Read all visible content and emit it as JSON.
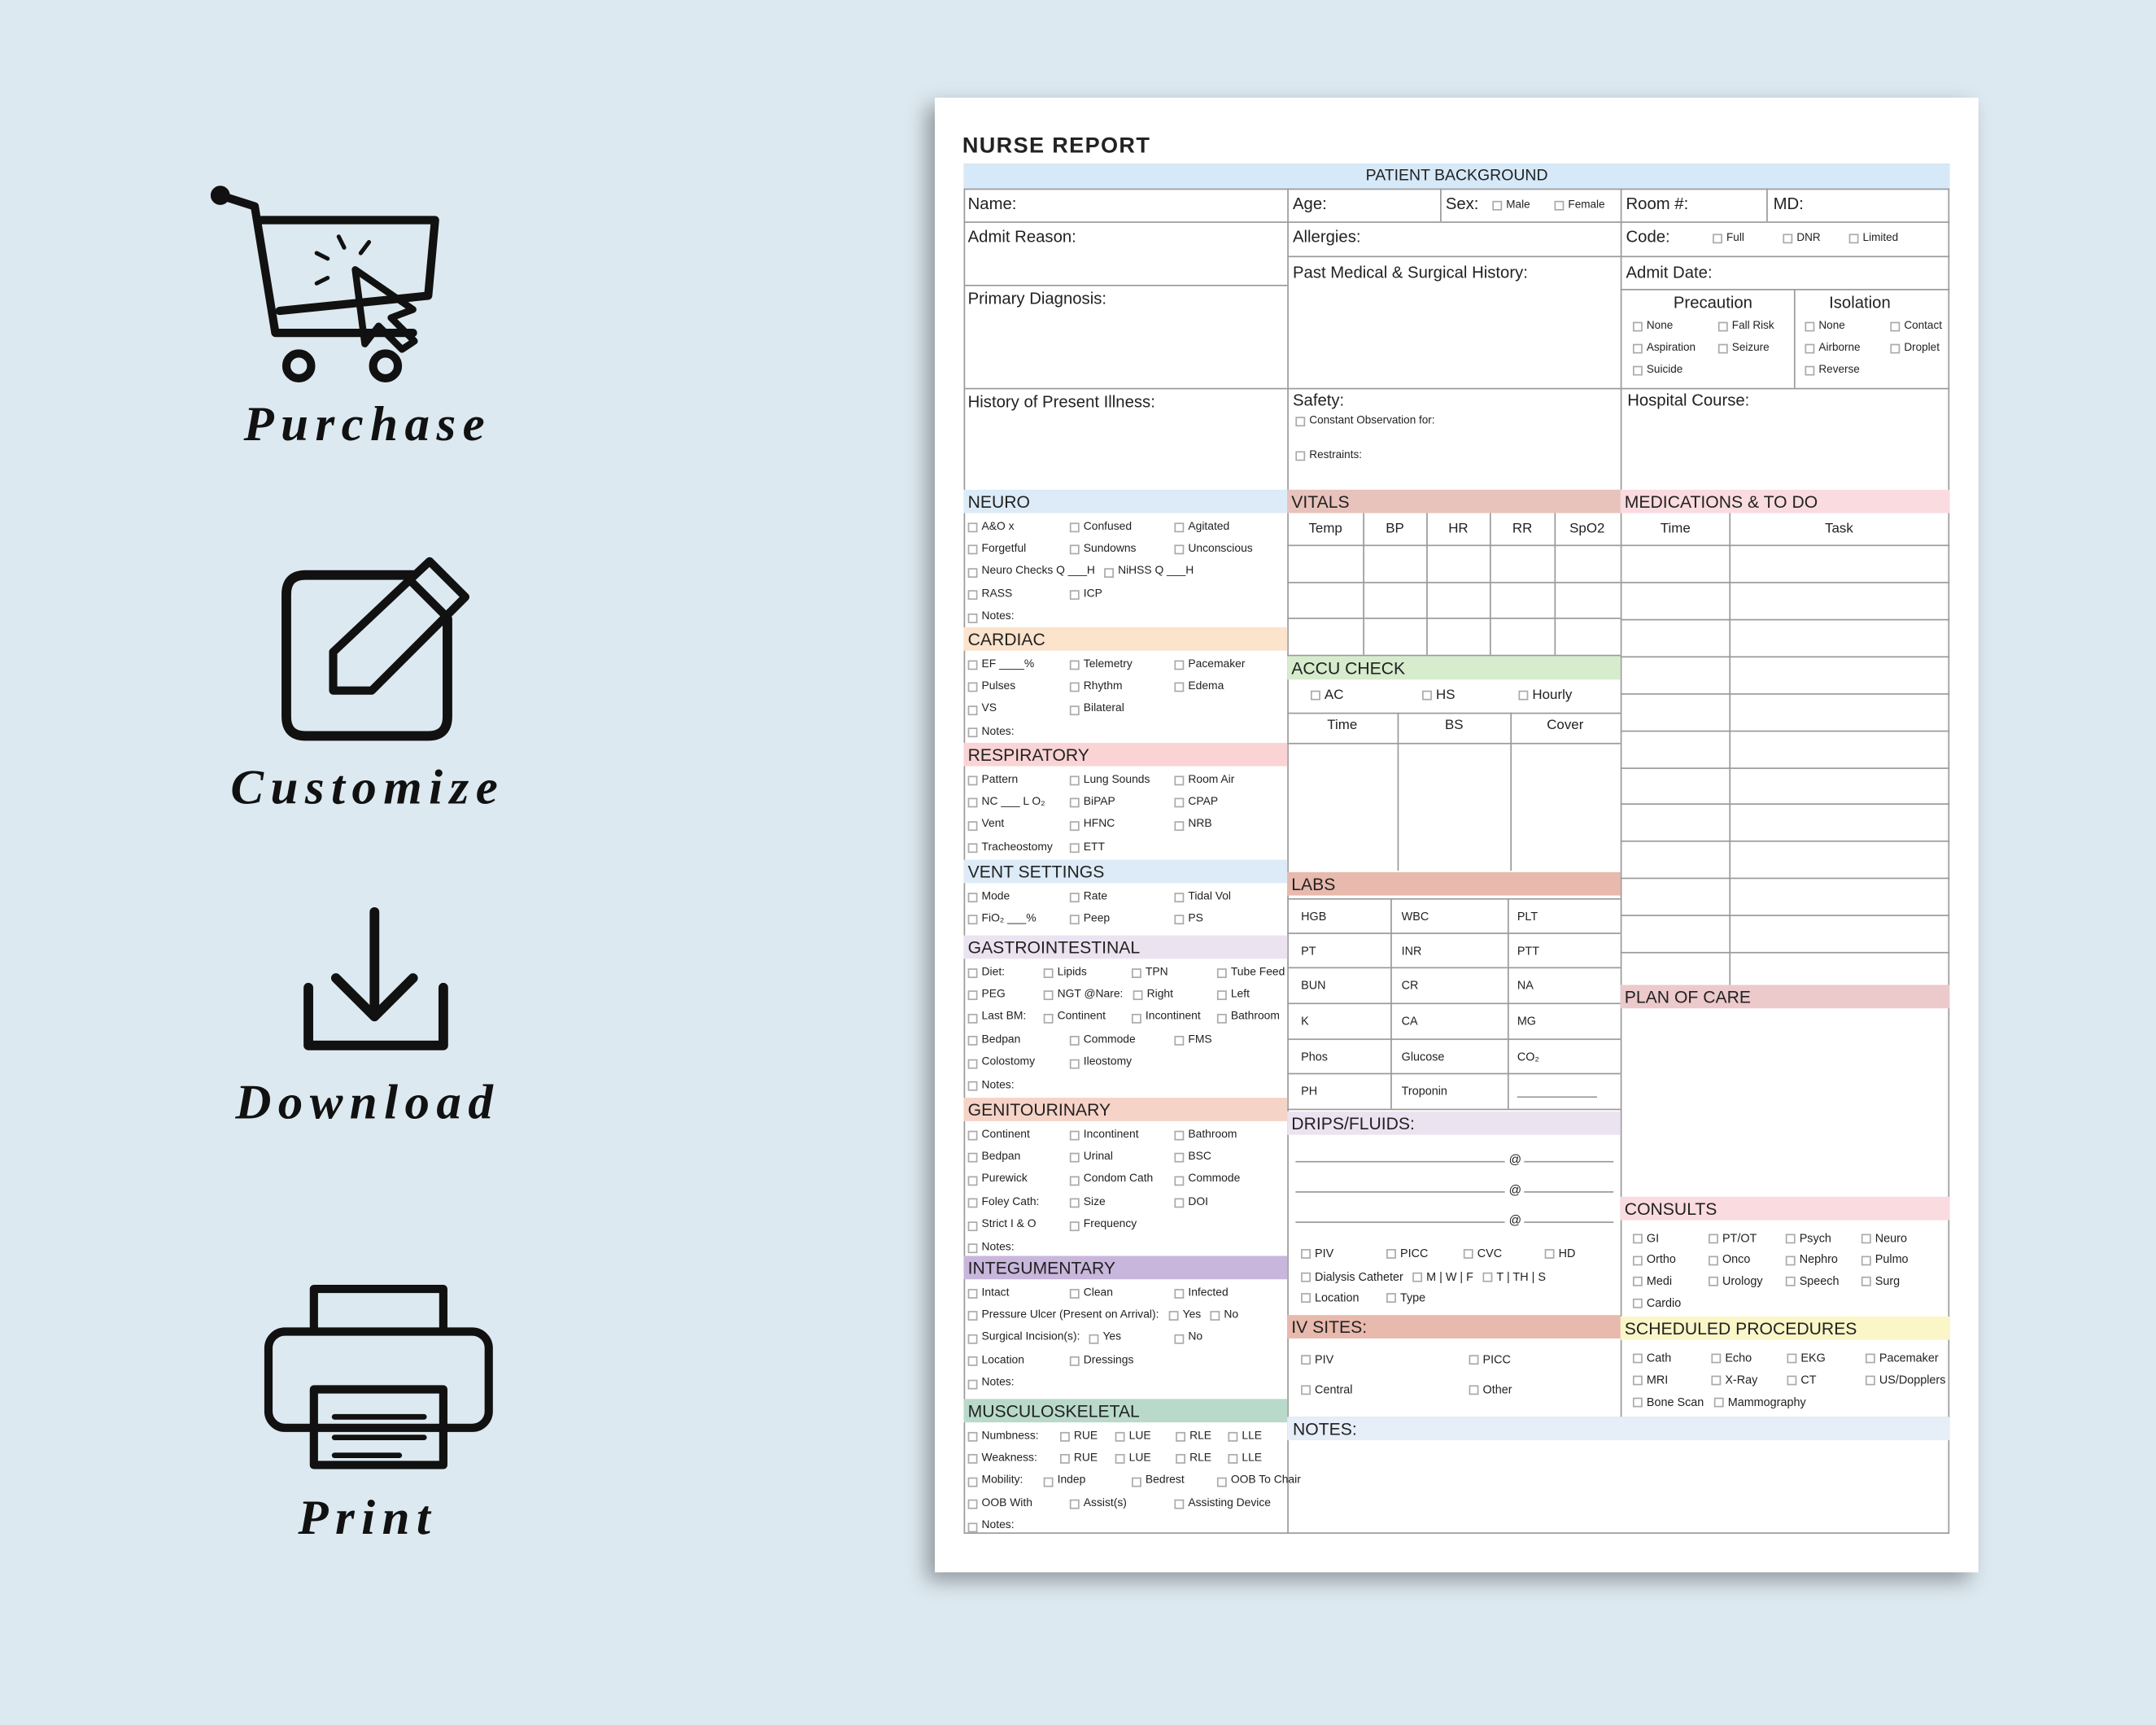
{
  "sidebar": {
    "steps": [
      "Purchase",
      "Customize",
      "Download",
      "Print"
    ]
  },
  "report": {
    "title": "NURSE REPORT",
    "background": {
      "title": "PATIENT BACKGROUND",
      "name": "Name:",
      "age": "Age:",
      "sex": "Sex:",
      "sex_options": [
        "Male",
        "Female"
      ],
      "room": "Room #:",
      "md": "MD:",
      "admit_reason": "Admit Reason:",
      "allergies": "Allergies:",
      "code": "Code:",
      "code_options": [
        "Full",
        "DNR",
        "Limited"
      ],
      "history": "Past Medical & Surgical History:",
      "admit_date": "Admit Date:",
      "primary_diagnosis": "Primary Diagnosis:",
      "precaution": {
        "title": "Precaution",
        "options": [
          "None",
          "Fall Risk",
          "Aspiration",
          "Seizure",
          "Suicide"
        ]
      },
      "isolation": {
        "title": "Isolation",
        "options": [
          "None",
          "Contact",
          "Airborne",
          "Droplet",
          "Reverse"
        ]
      },
      "hpi": "History of Present Illness:",
      "safety": "Safety:",
      "safety_options": [
        "Constant Observation for:",
        "Restraints:"
      ],
      "hospital_course": "Hospital Course:"
    },
    "sections": [
      {
        "title": "NEURO",
        "rows": [
          [
            "A&O x",
            "Confused",
            "Agitated"
          ],
          [
            "Forgetful",
            "Sundowns",
            "Unconscious"
          ],
          [
            "Neuro Checks Q ___H",
            "NiHSS Q ___H"
          ],
          [
            "RASS",
            "ICP"
          ],
          [
            "Notes:"
          ]
        ]
      },
      {
        "title": "CARDIAC",
        "rows": [
          [
            "EF ____%",
            "Telemetry",
            "Pacemaker"
          ],
          [
            "Pulses",
            "Rhythm",
            "Edema"
          ],
          [
            "VS",
            "Bilateral"
          ],
          [
            "Notes:"
          ]
        ]
      },
      {
        "title": "RESPIRATORY",
        "rows": [
          [
            "Pattern",
            "Lung Sounds",
            "Room Air"
          ],
          [
            "NC ___ L O₂",
            "BiPAP",
            "CPAP"
          ],
          [
            "Vent",
            "HFNC",
            "NRB"
          ],
          [
            "Tracheostomy",
            "ETT"
          ]
        ]
      },
      {
        "title": "VENT SETTINGS",
        "rows": [
          [
            "Mode",
            "Rate",
            "Tidal Vol"
          ],
          [
            "FiO₂ ___%",
            "Peep",
            "PS"
          ]
        ]
      },
      {
        "title": "GASTROINTESTINAL",
        "rows": [
          [
            "Diet:",
            "Lipids",
            "TPN",
            "Tube Feed"
          ],
          [
            "PEG",
            "NGT @Nare:",
            "Right",
            "Left"
          ],
          [
            "Last BM:",
            "Continent",
            "Incontinent",
            "Bathroom"
          ],
          [
            "Bedpan",
            "Commode",
            "FMS"
          ],
          [
            "Colostomy",
            "Ileostomy"
          ],
          [
            "Notes:"
          ]
        ]
      },
      {
        "title": "GENITOURINARY",
        "rows": [
          [
            "Continent",
            "Incontinent",
            "Bathroom"
          ],
          [
            "Bedpan",
            "Urinal",
            "BSC"
          ],
          [
            "Purewick",
            "Condom Cath",
            "Commode"
          ],
          [
            "Foley Cath:",
            "Size",
            "DOI"
          ],
          [
            "Strict I & O",
            "Frequency"
          ],
          [
            "Notes:"
          ]
        ]
      },
      {
        "title": "INTEGUMENTARY",
        "rows": [
          [
            "Intact",
            "Clean",
            "Infected"
          ],
          [
            "Pressure Ulcer (Present on Arrival):",
            "Yes",
            "No"
          ],
          [
            "Surgical Incision(s):",
            "Yes",
            "No"
          ],
          [
            "Location",
            "Dressings"
          ],
          [
            "Notes:"
          ]
        ]
      },
      {
        "title": "MUSCULOSKELETAL",
        "rows": [
          [
            "Numbness:",
            "RUE",
            "LUE",
            "RLE",
            "LLE"
          ],
          [
            "Weakness:",
            "RUE",
            "LUE",
            "RLE",
            "LLE"
          ],
          [
            "Mobility:",
            "Indep",
            "Bedrest",
            "OOB To Chair"
          ],
          [
            "OOB With",
            "Assist(s)",
            "Assisting Device"
          ],
          [
            "Notes:"
          ]
        ]
      }
    ],
    "vitals": {
      "title": "VITALS",
      "columns": [
        "Temp",
        "BP",
        "HR",
        "RR",
        "SpO2"
      ]
    },
    "accu_check": {
      "title": "ACCU CHECK",
      "options": [
        "AC",
        "HS",
        "Hourly"
      ],
      "columns": [
        "Time",
        "BS",
        "Cover"
      ]
    },
    "labs": {
      "title": "LABS",
      "cells": [
        [
          "HGB",
          "WBC",
          "PLT"
        ],
        [
          "PT",
          "INR",
          "PTT"
        ],
        [
          "BUN",
          "CR",
          "NA"
        ],
        [
          "K",
          "CA",
          "MG"
        ],
        [
          "Phos",
          "Glucose",
          "CO₂"
        ],
        [
          "PH",
          "Troponin"
        ]
      ]
    },
    "drips": {
      "title": "DRIPS/FLUIDS:",
      "at": "@",
      "rows": [
        [
          "PIV",
          "PICC",
          "CVC",
          "HD"
        ],
        [
          "Dialysis Catheter",
          "M | W | F",
          "T | TH | S"
        ],
        [
          "Location",
          "Type"
        ]
      ]
    },
    "iv_sites": {
      "title": "IV SITES:",
      "rows": [
        [
          "PIV",
          "PICC"
        ],
        [
          "Central",
          "Other"
        ]
      ]
    },
    "notes": "NOTES:",
    "medications": {
      "title": "MEDICATIONS & TO DO",
      "columns": [
        "Time",
        "Task"
      ]
    },
    "plan_of_care": "PLAN OF CARE",
    "consults": {
      "title": "CONSULTS",
      "rows": [
        [
          "GI",
          "PT/OT",
          "Psych",
          "Neuro"
        ],
        [
          "Ortho",
          "Onco",
          "Nephro",
          "Pulmo"
        ],
        [
          "Medi",
          "Urology",
          "Speech",
          "Surg"
        ],
        [
          "Cardio"
        ]
      ]
    },
    "procedures": {
      "title": "SCHEDULED PROCEDURES",
      "rows": [
        [
          "Cath",
          "Echo",
          "EKG",
          "Pacemaker"
        ],
        [
          "MRI",
          "X-Ray",
          "CT",
          "US/Dopplers"
        ],
        [
          "Bone Scan",
          "Mammography"
        ]
      ]
    }
  }
}
